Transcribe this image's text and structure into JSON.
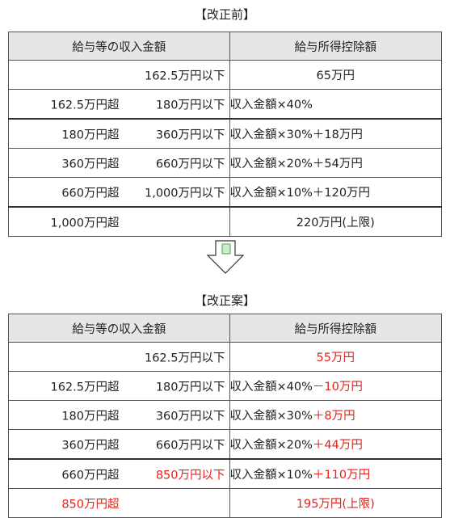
{
  "before": {
    "title": "【改正前】",
    "headers": {
      "income": "給与等の収入金額",
      "deduction": "給与所得控除額"
    },
    "rows": [
      {
        "from": "",
        "to": "162.5万円以下",
        "deduction": "65万円"
      },
      {
        "from": "162.5万円超",
        "to": "180万円以下",
        "deduction": "収入金額×40%"
      },
      {
        "from": "180万円超",
        "to": "360万円以下",
        "deduction": "収入金額×30%＋18万円"
      },
      {
        "from": "360万円超",
        "to": "660万円以下",
        "deduction": "収入金額×20%＋54万円"
      },
      {
        "from": "660万円超",
        "to": "1,000万円以下",
        "deduction": "収入金額×10%＋120万円"
      },
      {
        "from": "1,000万円超",
        "to": "",
        "deduction": "220万円(上限)"
      }
    ]
  },
  "arrow_icon": "down-arrow-icon",
  "after": {
    "title": "【改正案】",
    "headers": {
      "income": "給与等の収入金額",
      "deduction": "給与所得控除額"
    },
    "rows": [
      {
        "from": "",
        "to": "162.5万円以下",
        "deduction_base": "",
        "deduction_change": "55万円"
      },
      {
        "from": "162.5万円超",
        "to": "180万円以下",
        "deduction_base": "収入金額×40%",
        "deduction_change": "－10万円"
      },
      {
        "from": "180万円超",
        "to": "360万円以下",
        "deduction_base": "収入金額×30%",
        "deduction_change": "＋8万円"
      },
      {
        "from": "360万円超",
        "to": "660万円以下",
        "deduction_base": "収入金額×20%",
        "deduction_change": "＋44万円"
      },
      {
        "from": "660万円超",
        "to": "850万円以下",
        "deduction_base": "収入金額×10%",
        "deduction_change": "＋110万円"
      },
      {
        "from": "850万円超",
        "to": "",
        "deduction_base": "",
        "deduction_change": "195万円(上限)"
      }
    ]
  },
  "colors": {
    "header_bg": "#e7e6e6",
    "highlight": "#e8201a",
    "arrow_fill": "#c6efce",
    "arrow_stroke": "#333333"
  }
}
